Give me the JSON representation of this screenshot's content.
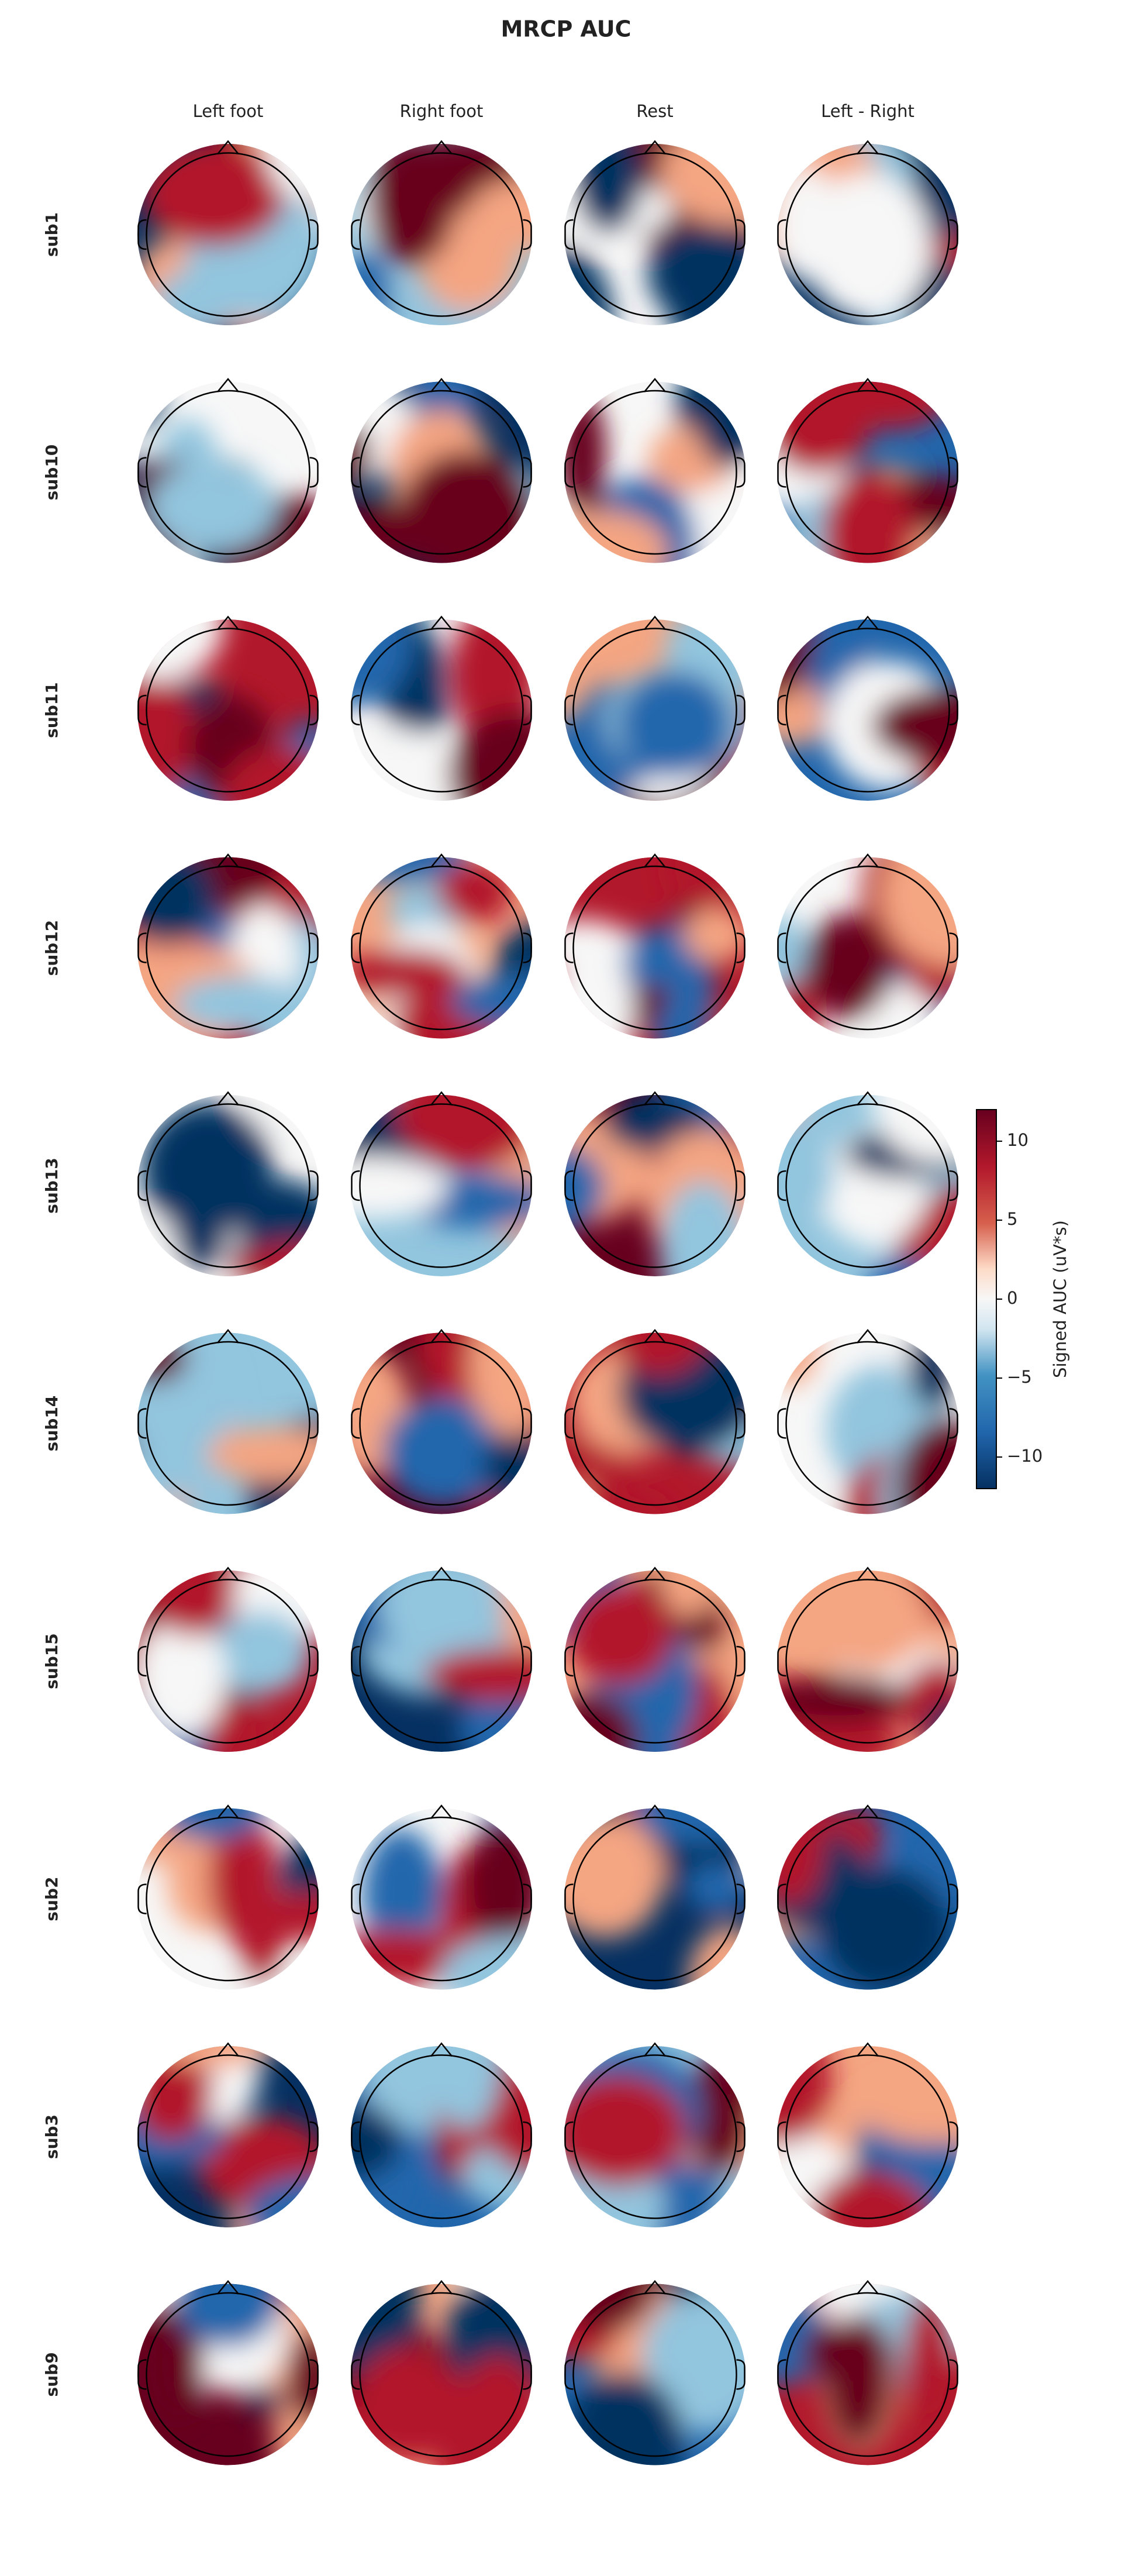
{
  "chart_data": {
    "type": "topomap",
    "title": "MRCP AUC",
    "columns": [
      "Left foot",
      "Right foot",
      "Rest",
      "Left - Right"
    ],
    "rows": [
      "sub1",
      "sub10",
      "sub11",
      "sub12",
      "sub13",
      "sub14",
      "sub15",
      "sub2",
      "sub3",
      "sub9"
    ],
    "ylabel": "Signed AUC (uV*s)",
    "ylim": [
      -12,
      12
    ],
    "yticks": [
      {
        "value": -10,
        "label": "−10"
      },
      {
        "value": -5,
        "label": "−5"
      },
      0,
      5,
      10
    ]
  }
}
